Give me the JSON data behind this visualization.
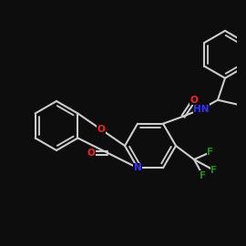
{
  "bg": "#0d0d0d",
  "bond_color": "#cccccc",
  "lw": 1.5,
  "atom_colors": {
    "O": "#ff2020",
    "N": "#3333ff",
    "F": "#228822",
    "C": "#cccccc"
  },
  "note": "All coords in image-space pixels (y from top, 0-250). Molecule: chromeno-pyridine tricyclic + amide + phenylethyl + CF3"
}
